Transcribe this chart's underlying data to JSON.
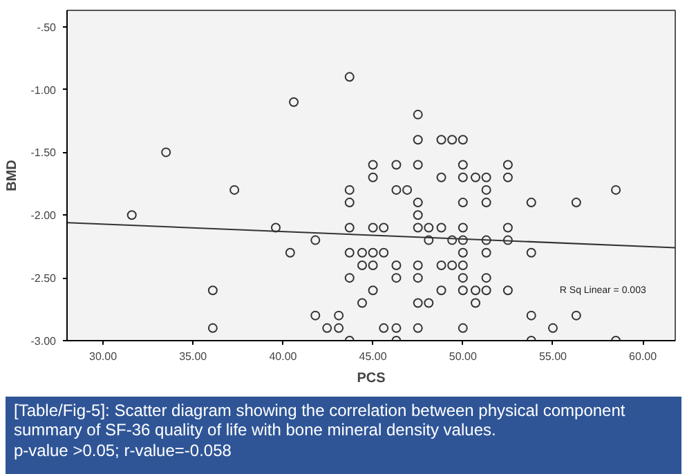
{
  "chart_data": {
    "type": "scatter",
    "xlabel": "PCS",
    "ylabel": "BMD",
    "grid": false,
    "xlim": [
      28.0,
      61.8
    ],
    "ylim": [
      -3.0,
      -0.37
    ],
    "xticks": [
      {
        "value": 30,
        "label": "30.00"
      },
      {
        "value": 35,
        "label": "35.00"
      },
      {
        "value": 40,
        "label": "40.00"
      },
      {
        "value": 45,
        "label": "45.00"
      },
      {
        "value": 50,
        "label": "50.00"
      },
      {
        "value": 55,
        "label": "55.00"
      },
      {
        "value": 60,
        "label": "60.00"
      }
    ],
    "yticks": [
      {
        "value": -0.5,
        "label": "-.50"
      },
      {
        "value": -1.0,
        "label": "-1.00"
      },
      {
        "value": -1.5,
        "label": "-1.50"
      },
      {
        "value": -2.0,
        "label": "-2.00"
      },
      {
        "value": -2.5,
        "label": "-2.50"
      },
      {
        "value": -3.0,
        "label": "-3.00"
      }
    ],
    "series": [
      {
        "marker": "circle",
        "color": "#333333",
        "x": [
          31.6,
          33.5,
          37.3,
          39.6,
          40.4,
          40.6,
          41.8,
          41.8,
          36.1,
          36.1,
          42.45,
          43.1,
          43.1,
          43.7,
          47.5,
          47.5,
          48.8,
          49.4,
          50.0,
          45.0,
          46.3,
          47.5,
          50.0,
          52.5,
          45.0,
          48.8,
          50.0,
          50.7,
          51.3,
          52.5,
          43.7,
          46.3,
          46.9,
          51.3,
          58.5,
          43.7,
          47.5,
          50.0,
          51.3,
          53.8,
          56.3,
          47.5,
          43.7,
          45.0,
          45.6,
          47.5,
          48.1,
          48.8,
          50.0,
          52.5,
          48.1,
          49.4,
          50.0,
          51.3,
          52.5,
          43.7,
          44.4,
          45.0,
          45.6,
          50.0,
          51.3,
          53.8,
          44.4,
          45.0,
          46.3,
          47.5,
          48.8,
          49.4,
          50.0,
          43.7,
          46.3,
          47.5,
          50.0,
          51.3,
          45.0,
          48.8,
          50.0,
          50.7,
          51.3,
          52.5,
          44.4,
          47.5,
          48.1,
          50.7,
          53.8,
          56.3,
          45.6,
          46.3,
          47.5,
          50.0,
          55.0,
          43.7,
          46.3,
          53.8,
          58.5
        ],
        "values": [
          -2.0,
          -1.5,
          -1.8,
          -2.1,
          -2.3,
          -1.1,
          -2.2,
          -2.8,
          -2.6,
          -2.9,
          -2.9,
          -2.8,
          -2.9,
          -0.9,
          -1.2,
          -1.4,
          -1.4,
          -1.4,
          -1.4,
          -1.6,
          -1.6,
          -1.6,
          -1.6,
          -1.6,
          -1.7,
          -1.7,
          -1.7,
          -1.7,
          -1.7,
          -1.7,
          -1.8,
          -1.8,
          -1.8,
          -1.8,
          -1.8,
          -1.9,
          -1.9,
          -1.9,
          -1.9,
          -1.9,
          -1.9,
          -2.0,
          -2.1,
          -2.1,
          -2.1,
          -2.1,
          -2.1,
          -2.1,
          -2.1,
          -2.1,
          -2.2,
          -2.2,
          -2.2,
          -2.2,
          -2.2,
          -2.3,
          -2.3,
          -2.3,
          -2.3,
          -2.3,
          -2.3,
          -2.3,
          -2.4,
          -2.4,
          -2.4,
          -2.4,
          -2.4,
          -2.4,
          -2.4,
          -2.5,
          -2.5,
          -2.5,
          -2.5,
          -2.5,
          -2.6,
          -2.6,
          -2.6,
          -2.6,
          -2.6,
          -2.6,
          -2.7,
          -2.7,
          -2.7,
          -2.7,
          -2.8,
          -2.8,
          -2.9,
          -2.9,
          -2.9,
          -2.9,
          -2.9,
          -3.0,
          -3.0,
          -3.0,
          -3.0
        ]
      },
      {
        "type": "line",
        "color": "#333333",
        "x": [
          28.0,
          61.8
        ],
        "values": [
          -2.06,
          -2.26
        ]
      }
    ],
    "annotations": [
      "R Sq Linear = 0.003",
      "[Table/Fig-5]: Scatter diagram showing the correlation between physical component summary of SF-36 quality of life with bone mineral density values.",
      "p-value >0.05; r-value=-0.058"
    ]
  }
}
